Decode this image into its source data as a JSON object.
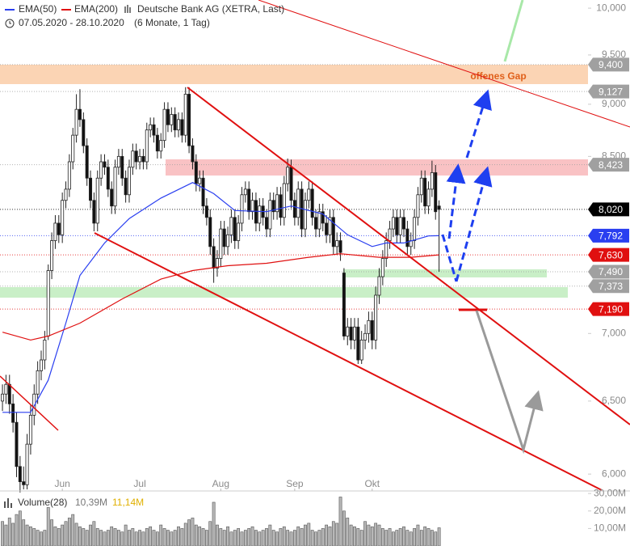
{
  "chart_data": {
    "type": "candlestick",
    "title": "Deutsche Bank AG (XETRA, Last)",
    "period": "07.05.2020 - 28.10.2020",
    "range": "(6 Monate, 1 Tag)",
    "log": true,
    "up_color": "#ffffff",
    "down_color": "#111111",
    "xlim": [
      -0.7,
      166.3
    ],
    "xticks": [
      {
        "value": 17,
        "label": "Jun"
      },
      {
        "value": 39,
        "label": "Jul"
      },
      {
        "value": 62,
        "label": "Aug"
      },
      {
        "value": 83,
        "label": "Sep"
      },
      {
        "value": 105,
        "label": "Okt"
      }
    ],
    "ylim": [
      5.89,
      10.09
    ],
    "yticks": [
      {
        "value": 10,
        "label": "10,000"
      },
      {
        "value": 9.5,
        "label": "9,500"
      },
      {
        "value": 9,
        "label": "9,000"
      },
      {
        "value": 8.5,
        "label": "8,500"
      },
      {
        "value": 7,
        "label": "7,000"
      },
      {
        "value": 6.5,
        "label": "6,500"
      },
      {
        "value": 6,
        "label": "6,000"
      }
    ],
    "ohlc": [
      [
        6.5,
        6.62,
        6.43,
        6.55
      ],
      [
        6.55,
        6.69,
        6.48,
        6.62
      ],
      [
        6.62,
        6.69,
        6.41,
        6.48
      ],
      [
        6.48,
        6.55,
        6.28,
        6.35
      ],
      [
        6.35,
        6.42,
        5.98,
        6.05
      ],
      [
        6.05,
        6.12,
        5.88,
        5.95
      ],
      [
        5.95,
        6.05,
        5.9,
        5.93
      ],
      [
        5.93,
        6.27,
        5.9,
        6.2
      ],
      [
        6.2,
        6.47,
        6.13,
        6.4
      ],
      [
        6.4,
        6.62,
        6.33,
        6.55
      ],
      [
        6.55,
        6.79,
        6.48,
        6.72
      ],
      [
        6.72,
        6.87,
        6.65,
        6.8
      ],
      [
        6.8,
        7.02,
        6.73,
        6.95
      ],
      [
        6.98,
        7.55,
        6.95,
        7.5
      ],
      [
        7.5,
        7.82,
        7.43,
        7.75
      ],
      [
        7.75,
        7.97,
        7.68,
        7.9
      ],
      [
        7.9,
        7.97,
        7.73,
        7.8
      ],
      [
        7.8,
        8.17,
        7.73,
        8.1
      ],
      [
        8.1,
        8.27,
        8.03,
        8.2
      ],
      [
        8.2,
        8.52,
        8.13,
        8.45
      ],
      [
        8.45,
        8.77,
        8.38,
        8.7
      ],
      [
        8.7,
        9.1,
        8.63,
        8.95
      ],
      [
        8.95,
        9.15,
        8.78,
        8.85
      ],
      [
        8.85,
        8.92,
        8.53,
        8.6
      ],
      [
        8.6,
        8.67,
        8.23,
        8.3
      ],
      [
        8.3,
        8.37,
        8.03,
        8.1
      ],
      [
        8.1,
        8.17,
        7.83,
        7.9
      ],
      [
        7.9,
        8.37,
        7.83,
        8.3
      ],
      [
        8.3,
        8.52,
        8.23,
        8.45
      ],
      [
        8.45,
        8.52,
        8.33,
        8.4
      ],
      [
        8.4,
        8.47,
        8.13,
        8.2
      ],
      [
        8.2,
        8.27,
        7.98,
        8.05
      ],
      [
        8.05,
        8.47,
        7.98,
        8.4
      ],
      [
        8.4,
        8.57,
        8.33,
        8.5
      ],
      [
        8.5,
        8.57,
        8.23,
        8.3
      ],
      [
        8.3,
        8.37,
        8.08,
        8.15
      ],
      [
        8.15,
        8.47,
        8.08,
        8.4
      ],
      [
        8.4,
        8.62,
        8.33,
        8.55
      ],
      [
        8.55,
        8.62,
        8.38,
        8.45
      ],
      [
        8.45,
        8.57,
        8.38,
        8.5
      ],
      [
        8.5,
        8.57,
        8.38,
        8.45
      ],
      [
        8.45,
        8.82,
        8.38,
        8.75
      ],
      [
        8.75,
        8.87,
        8.68,
        8.8
      ],
      [
        8.8,
        8.87,
        8.63,
        8.7
      ],
      [
        8.7,
        8.77,
        8.48,
        8.55
      ],
      [
        8.55,
        8.72,
        8.48,
        8.65
      ],
      [
        8.65,
        9.02,
        8.58,
        8.95
      ],
      [
        8.95,
        9.02,
        8.73,
        8.8
      ],
      [
        8.8,
        8.97,
        8.73,
        8.9
      ],
      [
        8.9,
        8.97,
        8.68,
        8.75
      ],
      [
        8.75,
        8.92,
        8.68,
        8.85
      ],
      [
        8.85,
        8.92,
        8.63,
        8.7
      ],
      [
        8.7,
        9.17,
        8.63,
        9.1
      ],
      [
        9.1,
        9.17,
        8.53,
        8.6
      ],
      [
        8.6,
        8.67,
        8.38,
        8.45
      ],
      [
        8.45,
        8.52,
        8.18,
        8.25
      ],
      [
        8.25,
        8.37,
        8.18,
        8.3
      ],
      [
        8.3,
        8.37,
        7.98,
        8.05
      ],
      [
        8.05,
        8.12,
        7.88,
        7.95
      ],
      [
        7.95,
        8.02,
        7.63,
        7.7
      ],
      [
        7.7,
        7.77,
        7.4,
        7.52
      ],
      [
        7.52,
        7.67,
        7.45,
        7.6
      ],
      [
        7.6,
        7.92,
        7.53,
        7.85
      ],
      [
        7.85,
        7.92,
        7.63,
        7.7
      ],
      [
        7.7,
        7.87,
        7.63,
        7.8
      ],
      [
        7.8,
        8.02,
        7.73,
        7.95
      ],
      [
        7.95,
        8.02,
        7.68,
        7.75
      ],
      [
        7.75,
        7.97,
        7.68,
        7.9
      ],
      [
        7.9,
        8.22,
        7.83,
        8.15
      ],
      [
        8.15,
        8.27,
        8.08,
        8.2
      ],
      [
        8.2,
        8.27,
        7.93,
        8.0
      ],
      [
        8.0,
        8.17,
        7.93,
        8.1
      ],
      [
        8.1,
        8.17,
        7.83,
        7.9
      ],
      [
        7.9,
        8.12,
        7.83,
        8.05
      ],
      [
        8.05,
        8.12,
        7.88,
        7.95
      ],
      [
        7.95,
        8.02,
        7.78,
        7.85
      ],
      [
        7.85,
        8.17,
        7.78,
        8.1
      ],
      [
        8.1,
        8.17,
        7.93,
        8.0
      ],
      [
        8.0,
        8.22,
        7.93,
        8.15
      ],
      [
        8.15,
        8.22,
        7.88,
        7.95
      ],
      [
        7.95,
        8.32,
        7.88,
        8.25
      ],
      [
        8.25,
        8.48,
        8.18,
        8.4
      ],
      [
        8.4,
        8.47,
        8.03,
        8.1
      ],
      [
        8.1,
        8.17,
        7.88,
        7.95
      ],
      [
        7.95,
        8.27,
        7.88,
        8.2
      ],
      [
        8.2,
        8.27,
        7.78,
        7.85
      ],
      [
        7.85,
        8.17,
        7.78,
        8.1
      ],
      [
        8.1,
        8.27,
        8.03,
        8.2
      ],
      [
        8.2,
        8.27,
        7.88,
        7.95
      ],
      [
        7.95,
        8.02,
        7.78,
        7.85
      ],
      [
        7.85,
        8.07,
        7.78,
        8.0
      ],
      [
        8.0,
        8.07,
        7.83,
        7.9
      ],
      [
        7.9,
        7.97,
        7.73,
        7.8
      ],
      [
        7.8,
        8.02,
        7.73,
        7.95
      ],
      [
        7.95,
        8.02,
        7.63,
        7.7
      ],
      [
        7.7,
        7.82,
        7.63,
        7.75
      ],
      [
        7.75,
        7.82,
        7.58,
        7.65
      ],
      [
        7.48,
        7.52,
        6.95,
        6.98
      ],
      [
        6.98,
        7.12,
        6.91,
        7.05
      ],
      [
        7.05,
        7.12,
        6.88,
        6.95
      ],
      [
        6.95,
        7.12,
        6.88,
        7.05
      ],
      [
        7.05,
        7.12,
        6.77,
        6.8
      ],
      [
        6.8,
        7.02,
        6.77,
        6.95
      ],
      [
        6.95,
        7.07,
        6.88,
        7.0
      ],
      [
        7.0,
        7.17,
        6.93,
        7.1
      ],
      [
        7.1,
        7.17,
        6.88,
        6.95
      ],
      [
        6.95,
        7.37,
        6.88,
        7.3
      ],
      [
        7.3,
        7.52,
        7.23,
        7.45
      ],
      [
        7.45,
        7.67,
        7.38,
        7.6
      ],
      [
        7.6,
        7.82,
        7.53,
        7.75
      ],
      [
        7.75,
        7.92,
        7.68,
        7.85
      ],
      [
        7.85,
        8.02,
        7.78,
        7.95
      ],
      [
        7.95,
        8.02,
        7.73,
        7.8
      ],
      [
        7.8,
        8.02,
        7.73,
        7.95
      ],
      [
        7.95,
        8.02,
        7.78,
        7.85
      ],
      [
        7.85,
        7.92,
        7.63,
        7.7
      ],
      [
        7.7,
        7.82,
        7.63,
        7.75
      ],
      [
        7.75,
        8.02,
        7.68,
        7.95
      ],
      [
        7.95,
        8.22,
        7.88,
        8.15
      ],
      [
        8.15,
        8.37,
        8.08,
        8.3
      ],
      [
        8.3,
        8.37,
        7.98,
        8.05
      ],
      [
        8.05,
        8.27,
        7.98,
        8.2
      ],
      [
        8.2,
        8.46,
        8.13,
        8.35
      ],
      [
        8.35,
        8.42,
        7.93,
        8.0
      ],
      [
        8.05,
        8.1,
        7.49,
        8.02
      ]
    ],
    "series": [
      {
        "name": "EMA(50)",
        "color": "#2a3ff0",
        "x": [
          0,
          8,
          13,
          18,
          22,
          29,
          36,
          45,
          54,
          60,
          66,
          75,
          82,
          91,
          98,
          105,
          109,
          114,
          121,
          124
        ],
        "values": [
          6.42,
          6.42,
          6.65,
          7.08,
          7.46,
          7.73,
          7.94,
          8.12,
          8.26,
          8.16,
          8.01,
          8.0,
          8.05,
          7.98,
          7.8,
          7.7,
          7.73,
          7.73,
          7.79,
          7.792
        ]
      },
      {
        "name": "EMA(200)",
        "color": "#e01010",
        "x": [
          0,
          8,
          13,
          22,
          34,
          45,
          54,
          64,
          75,
          87,
          96,
          107,
          116,
          124
        ],
        "values": [
          7.01,
          6.95,
          6.98,
          7.08,
          7.27,
          7.43,
          7.5,
          7.54,
          7.56,
          7.61,
          7.64,
          7.61,
          7.61,
          7.63
        ]
      }
    ],
    "price_labels": [
      {
        "value": 9.4,
        "label": "9,400",
        "color": "#a0a0a0"
      },
      {
        "value": 9.127,
        "label": "9,127",
        "color": "#a0a0a0"
      },
      {
        "value": 8.423,
        "label": "8,423",
        "color": "#a0a0a0"
      },
      {
        "value": 8.02,
        "label": "8,020",
        "color": "#000000"
      },
      {
        "value": 7.792,
        "label": "7,792",
        "color": "#2a3ff0"
      },
      {
        "value": 7.63,
        "label": "7,630",
        "color": "#e01010"
      },
      {
        "value": 7.49,
        "label": "7,490",
        "color": "#a0a0a0"
      },
      {
        "value": 7.373,
        "label": "7,373",
        "color": "#a0a0a0"
      },
      {
        "value": 7.19,
        "label": "7,190",
        "color": "#e01010"
      }
    ],
    "annotation": "offenes Gap",
    "volume": {
      "name": "Volume(28)",
      "color": "#b8b8b8",
      "ylim": [
        0,
        31
      ],
      "yticks": [
        {
          "value": 30,
          "label": "30,00M"
        },
        {
          "value": 20,
          "label": "20,00M"
        },
        {
          "value": 10,
          "label": "10,00M"
        }
      ],
      "current": {
        "value": 10.39,
        "label": "10,39M"
      },
      "average": {
        "value": 11.14,
        "label": "11,14M"
      },
      "values": [
        14,
        12,
        16,
        13,
        18,
        20,
        15,
        12,
        11,
        10,
        9,
        8,
        9,
        22,
        15,
        11,
        10,
        12,
        14,
        16,
        18,
        13,
        11,
        10,
        9,
        12,
        14,
        10,
        9,
        8,
        9,
        11,
        10,
        9,
        8,
        12,
        9,
        10,
        8,
        9,
        8,
        10,
        11,
        9,
        8,
        12,
        10,
        9,
        8,
        9,
        11,
        10,
        13,
        15,
        16,
        12,
        11,
        10,
        9,
        14,
        25,
        12,
        10,
        9,
        11,
        8,
        9,
        10,
        8,
        9,
        10,
        11,
        9,
        8,
        9,
        10,
        12,
        9,
        8,
        10,
        11,
        9,
        8,
        9,
        11,
        10,
        12,
        13,
        9,
        8,
        9,
        10,
        12,
        11,
        14,
        13,
        28,
        20,
        16,
        12,
        11,
        10,
        9,
        14,
        12,
        11,
        13,
        12,
        10,
        9,
        10,
        8,
        9,
        10,
        11,
        9,
        8,
        10,
        12,
        9,
        11,
        10,
        9,
        8,
        10.39
      ]
    }
  }
}
